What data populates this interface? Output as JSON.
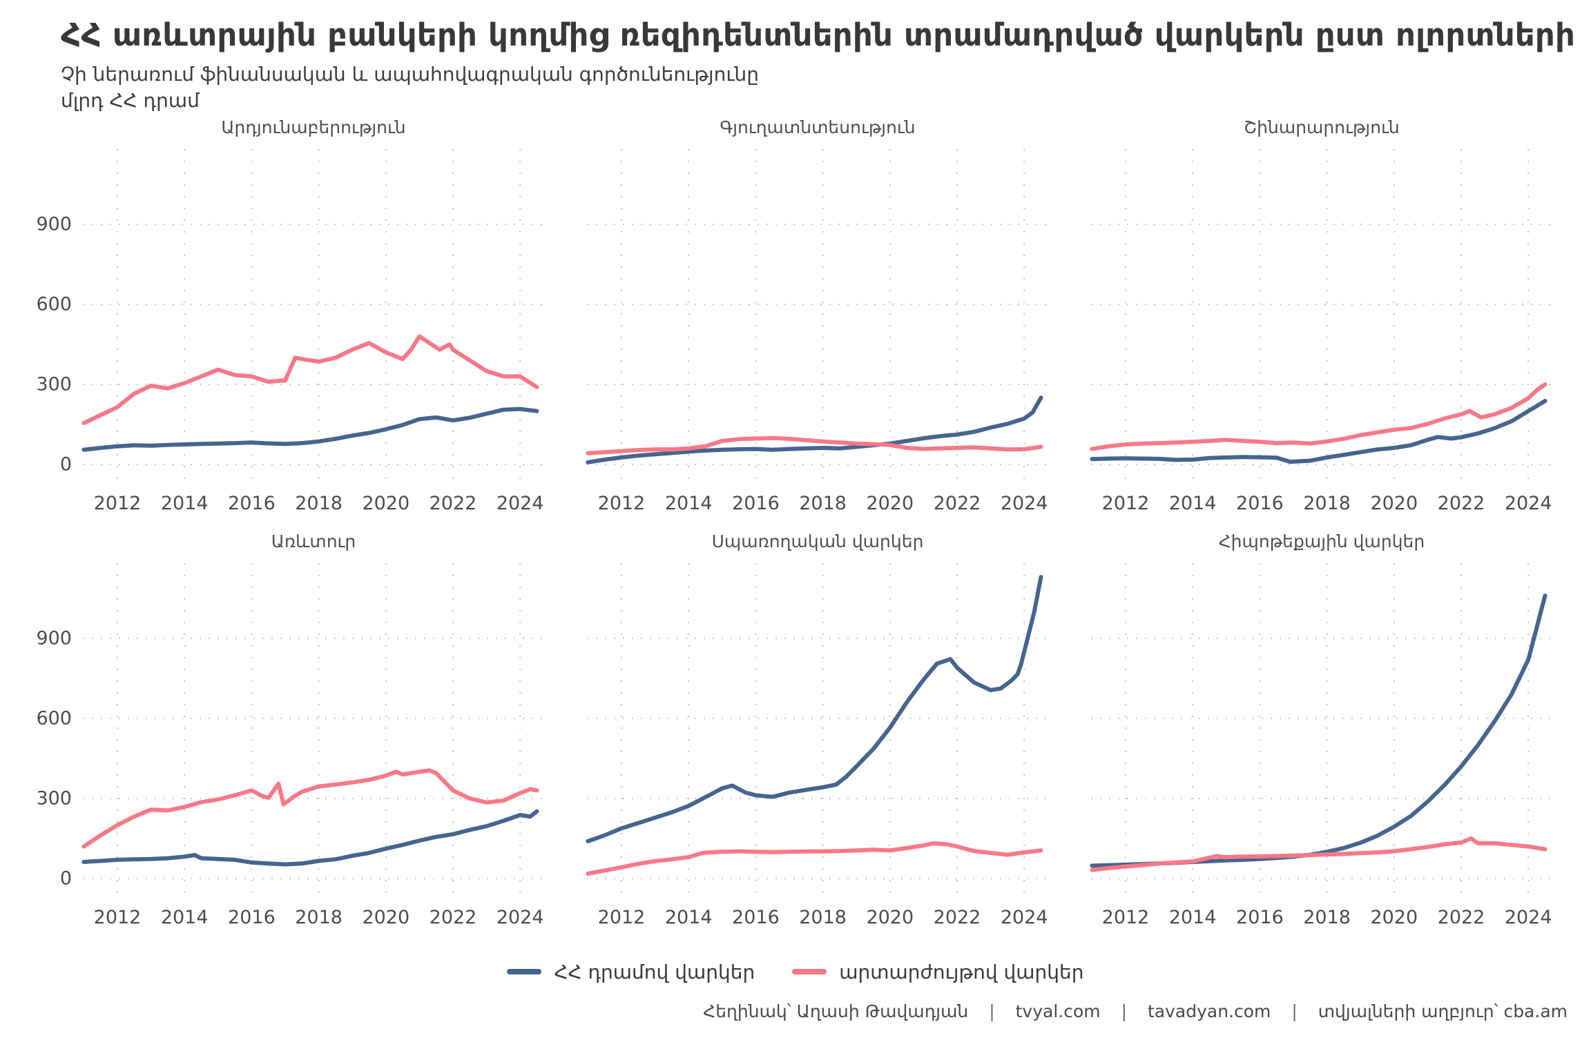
{
  "header": {
    "title": "ՀՀ առևտրային բանկերի կողմից ռեզիդենտներին տրամադրված վարկերն ըստ ոլորտների",
    "subtitle": "Չի ներառում ֆինանսական և ապահովագրական գործունեությունը",
    "unit_label": "մլրդ ՀՀ դրամ"
  },
  "legend": {
    "items": [
      {
        "key": "amd",
        "label": "ՀՀ դրամով վարկեր"
      },
      {
        "key": "fx",
        "label": "արտարժույթով վարկեր"
      }
    ]
  },
  "footer": {
    "author": "Հեղինակ՝ Աղասի Թավադյան",
    "site1": "tvyal.com",
    "site2": "tavadyan.com",
    "source": "տվյալների աղբյուր՝ cba.am",
    "separator": "|"
  },
  "chart_data": {
    "type": "line",
    "title": "ՀՀ առևտրային բանկերի կողմից ռեզիդենտներին տրամադրված վարկերն ըստ ոլորտների",
    "subtitle": "Չի ներառում ֆինանսական և ապահովագրական գործունեությունը",
    "ylabel": "մլրդ ՀՀ դրամ",
    "grid": "dotted",
    "legend_position": "bottom",
    "x_ticks": [
      2012,
      2014,
      2016,
      2018,
      2020,
      2022,
      2024
    ],
    "x_range": [
      2011,
      2024.6
    ],
    "y_ticks": [
      0,
      300,
      600,
      900
    ],
    "y_range": [
      0,
      1200
    ],
    "colors": {
      "amd": "#46648e",
      "fx": "#f87887",
      "grid": "#c9c9c9"
    },
    "series_names": {
      "amd": "ՀՀ դրամով վարկեր",
      "fx": "արտարժույթով վարկեր"
    },
    "facets": [
      {
        "title": "Արդյունաբերություն",
        "series": [
          {
            "key": "amd",
            "name": "ՀՀ դրամով վարկեր",
            "x": [
              2011,
              2011.5,
              2012,
              2012.5,
              2013,
              2013.5,
              2014,
              2014.5,
              2015,
              2015.5,
              2016,
              2016.5,
              2017,
              2017.5,
              2018,
              2018.5,
              2019,
              2019.5,
              2020,
              2020.5,
              2021,
              2021.5,
              2022,
              2022.5,
              2023,
              2023.5,
              2024,
              2024.5
            ],
            "y": [
              55,
              62,
              68,
              72,
              70,
              73,
              75,
              77,
              78,
              80,
              82,
              79,
              77,
              80,
              86,
              96,
              108,
              118,
              132,
              148,
              170,
              176,
              165,
              175,
              190,
              205,
              208,
              200
            ]
          },
          {
            "key": "fx",
            "name": "արտարժույթով վարկեր",
            "x": [
              2011,
              2011.5,
              2012,
              2012.5,
              2013,
              2013.5,
              2014,
              2014.5,
              2015,
              2015.5,
              2016,
              2016.5,
              2017,
              2017.3,
              2017.5,
              2018,
              2018.5,
              2019,
              2019.5,
              2020,
              2020.5,
              2020.75,
              2021,
              2021.3,
              2021.6,
              2021.9,
              2022,
              2022.5,
              2023,
              2023.5,
              2024,
              2024.5
            ],
            "y": [
              155,
              185,
              215,
              265,
              295,
              285,
              305,
              330,
              355,
              335,
              330,
              310,
              315,
              400,
              395,
              385,
              400,
              430,
              455,
              420,
              395,
              430,
              480,
              455,
              430,
              450,
              430,
              390,
              350,
              330,
              330,
              290
            ]
          }
        ]
      },
      {
        "title": "Գյուղատնտեսություն",
        "series": [
          {
            "key": "amd",
            "name": "ՀՀ դրամով վարկեր",
            "x": [
              2011,
              2011.5,
              2012,
              2012.5,
              2013,
              2013.5,
              2014,
              2014.5,
              2015,
              2015.5,
              2016,
              2016.5,
              2017,
              2017.5,
              2018,
              2018.5,
              2019,
              2019.5,
              2020,
              2020.5,
              2021,
              2021.5,
              2022,
              2022.5,
              2023,
              2023.5,
              2024,
              2024.25,
              2024.5
            ],
            "y": [
              8,
              18,
              26,
              33,
              38,
              43,
              48,
              52,
              55,
              57,
              58,
              55,
              58,
              60,
              62,
              60,
              66,
              72,
              78,
              88,
              98,
              106,
              112,
              122,
              138,
              152,
              172,
              195,
              250
            ]
          },
          {
            "key": "fx",
            "name": "արտարժույթով վարկեր",
            "x": [
              2011,
              2011.5,
              2012,
              2012.5,
              2013,
              2013.5,
              2014,
              2014.5,
              2015,
              2015.5,
              2016,
              2016.5,
              2017,
              2017.5,
              2018,
              2018.5,
              2019,
              2019.5,
              2020,
              2020.5,
              2021,
              2021.5,
              2022,
              2022.5,
              2023,
              2023.5,
              2024,
              2024.5
            ],
            "y": [
              42,
              46,
              50,
              54,
              56,
              56,
              60,
              68,
              88,
              95,
              97,
              99,
              96,
              91,
              86,
              82,
              78,
              76,
              73,
              62,
              58,
              60,
              62,
              64,
              60,
              56,
              57,
              66
            ]
          }
        ]
      },
      {
        "title": "Շինարարություն",
        "series": [
          {
            "key": "amd",
            "name": "ՀՀ դրամով վարկեր",
            "x": [
              2011,
              2011.5,
              2012,
              2012.5,
              2013,
              2013.5,
              2014,
              2014.5,
              2015,
              2015.5,
              2016,
              2016.5,
              2016.9,
              2017.5,
              2018,
              2018.5,
              2019,
              2019.5,
              2020,
              2020.5,
              2021,
              2021.3,
              2021.7,
              2022,
              2022.5,
              2023,
              2023.5,
              2024,
              2024.5
            ],
            "y": [
              20,
              22,
              23,
              22,
              21,
              17,
              18,
              24,
              26,
              28,
              27,
              25,
              10,
              14,
              26,
              36,
              46,
              56,
              62,
              72,
              92,
              103,
              97,
              102,
              116,
              136,
              162,
              200,
              238
            ]
          },
          {
            "key": "fx",
            "name": "արտարժույթով վարկեր",
            "x": [
              2011,
              2011.5,
              2012,
              2012.5,
              2013,
              2013.5,
              2014,
              2014.5,
              2015,
              2015.5,
              2016,
              2016.5,
              2017,
              2017.5,
              2018,
              2018.5,
              2019,
              2019.5,
              2020,
              2020.5,
              2021,
              2021.5,
              2022,
              2022.25,
              2022.6,
              2023,
              2023.5,
              2024,
              2024.25,
              2024.5
            ],
            "y": [
              58,
              68,
              75,
              78,
              80,
              82,
              85,
              88,
              92,
              88,
              85,
              80,
              82,
              78,
              86,
              96,
              110,
              120,
              130,
              136,
              152,
              172,
              188,
              200,
              176,
              188,
              212,
              248,
              278,
              300
            ]
          }
        ]
      },
      {
        "title": "Առևտուր",
        "series": [
          {
            "key": "amd",
            "name": "ՀՀ դրամով վարկեր",
            "x": [
              2011,
              2011.5,
              2012,
              2012.5,
              2013,
              2013.5,
              2014,
              2014.3,
              2014.5,
              2015,
              2015.5,
              2016,
              2016.5,
              2017,
              2017.5,
              2018,
              2018.5,
              2019,
              2019.5,
              2020,
              2020.5,
              2021,
              2021.5,
              2022,
              2022.5,
              2023,
              2023.5,
              2024,
              2024.3,
              2024.5
            ],
            "y": [
              62,
              66,
              70,
              72,
              73,
              76,
              82,
              88,
              76,
              73,
              70,
              60,
              56,
              53,
              56,
              66,
              72,
              85,
              96,
              112,
              126,
              142,
              156,
              166,
              182,
              196,
              216,
              238,
              232,
              252
            ]
          },
          {
            "key": "fx",
            "name": "արտարժույթով վարկեր",
            "x": [
              2011,
              2011.5,
              2012,
              2012.5,
              2013,
              2013.5,
              2014,
              2014.5,
              2015,
              2015.5,
              2016,
              2016.3,
              2016.5,
              2016.8,
              2016.95,
              2017.3,
              2017.5,
              2018,
              2018.5,
              2019,
              2019.5,
              2020,
              2020.3,
              2020.5,
              2021,
              2021.3,
              2021.5,
              2022,
              2022.5,
              2023,
              2023.5,
              2024,
              2024.3,
              2024.5
            ],
            "y": [
              120,
              162,
              200,
              232,
              258,
              255,
              268,
              286,
              296,
              312,
              330,
              310,
              302,
              355,
              278,
              310,
              325,
              345,
              352,
              360,
              370,
              385,
              400,
              390,
              400,
              405,
              395,
              330,
              300,
              285,
              292,
              320,
              335,
              330
            ]
          }
        ]
      },
      {
        "title": "Սպառողական վարկեր",
        "series": [
          {
            "key": "amd",
            "name": "ՀՀ դրամով վարկեր",
            "x": [
              2011,
              2011.5,
              2012,
              2012.5,
              2013,
              2013.5,
              2014,
              2014.5,
              2015,
              2015.3,
              2015.7,
              2016,
              2016.5,
              2017,
              2017.5,
              2018,
              2018.4,
              2018.7,
              2019,
              2019.5,
              2020,
              2020.5,
              2021,
              2021.4,
              2021.8,
              2022,
              2022.5,
              2023,
              2023.3,
              2023.6,
              2023.8,
              2023.9,
              2024.1,
              2024.3,
              2024.5
            ],
            "y": [
              140,
              162,
              188,
              208,
              228,
              248,
              272,
              305,
              338,
              348,
              322,
              312,
              306,
              322,
              332,
              342,
              352,
              382,
              420,
              485,
              565,
              660,
              745,
              805,
              822,
              790,
              735,
              706,
              712,
              740,
              765,
              800,
              900,
              1000,
              1130
            ]
          },
          {
            "key": "fx",
            "name": "արտարժույթով վարկեր",
            "x": [
              2011,
              2011.5,
              2012,
              2012.5,
              2013,
              2013.5,
              2014,
              2014.4,
              2014.5,
              2015,
              2015.5,
              2016,
              2016.5,
              2017,
              2017.5,
              2018,
              2018.5,
              2019,
              2019.5,
              2020,
              2020.5,
              2021,
              2021.3,
              2021.7,
              2022,
              2022.5,
              2023,
              2023.5,
              2024,
              2024.5
            ],
            "y": [
              18,
              30,
              42,
              55,
              65,
              72,
              80,
              95,
              97,
              100,
              102,
              100,
              99,
              100,
              101,
              102,
              103,
              105,
              108,
              105,
              114,
              124,
              132,
              128,
              120,
              103,
              96,
              89,
              98,
              105
            ]
          }
        ]
      },
      {
        "title": "Հիպոթեքային վարկեր",
        "series": [
          {
            "key": "amd",
            "name": "ՀՀ դրամով վարկեր",
            "x": [
              2011,
              2011.5,
              2012,
              2012.5,
              2013,
              2013.5,
              2014,
              2014.5,
              2015,
              2015.5,
              2016,
              2016.5,
              2017,
              2017.5,
              2018,
              2018.5,
              2019,
              2019.5,
              2020,
              2020.5,
              2021,
              2021.5,
              2022,
              2022.5,
              2023,
              2023.5,
              2024,
              2024.25,
              2024.5
            ],
            "y": [
              48,
              50,
              52,
              54,
              56,
              59,
              62,
              65,
              68,
              70,
              73,
              77,
              82,
              89,
              100,
              114,
              134,
              160,
              194,
              234,
              288,
              350,
              420,
              500,
              590,
              690,
              820,
              940,
              1060
            ]
          },
          {
            "key": "fx",
            "name": "արտարժույթով վարկեր",
            "x": [
              2011,
              2011.5,
              2012,
              2012.5,
              2013,
              2013.5,
              2014,
              2014.7,
              2015,
              2015.5,
              2016,
              2016.5,
              2017,
              2017.5,
              2018,
              2018.5,
              2019,
              2019.5,
              2020,
              2020.5,
              2021,
              2021.5,
              2022,
              2022.3,
              2022.5,
              2023,
              2023.5,
              2024,
              2024.5
            ],
            "y": [
              32,
              39,
              45,
              50,
              56,
              60,
              64,
              84,
              80,
              82,
              83,
              84,
              86,
              88,
              90,
              92,
              95,
              98,
              102,
              110,
              118,
              128,
              135,
              150,
              132,
              132,
              126,
              120,
              110
            ]
          }
        ]
      }
    ]
  }
}
